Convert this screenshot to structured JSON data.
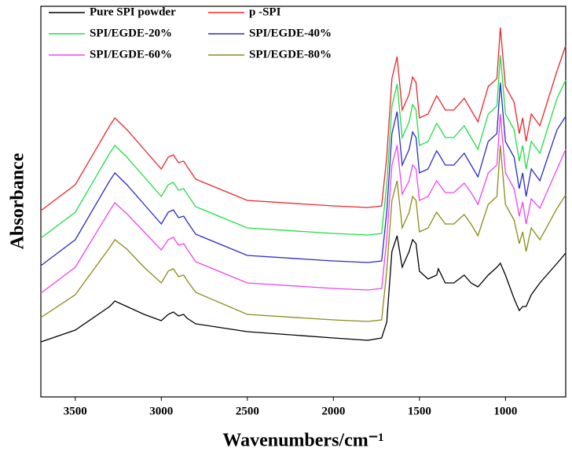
{
  "chart_data": {
    "type": "line",
    "xlabel": "Wavenumbers/cm⁻¹",
    "ylabel": "Absorbance",
    "x": [
      3700,
      3500,
      3300,
      3270,
      3200,
      3100,
      3000,
      2960,
      2930,
      2900,
      2870,
      2850,
      2800,
      2500,
      2000,
      1800,
      1720,
      1690,
      1660,
      1630,
      1600,
      1560,
      1540,
      1520,
      1500,
      1450,
      1400,
      1390,
      1350,
      1300,
      1240,
      1200,
      1160,
      1100,
      1050,
      1030,
      1000,
      950,
      920,
      900,
      880,
      850,
      800,
      700,
      650
    ],
    "xlim": [
      3700,
      650
    ],
    "xticks": [
      3500,
      3000,
      2500,
      2000,
      1500,
      1000
    ],
    "ylim": [
      0,
      497
    ],
    "series": [
      {
        "name": "Pure SPI powder",
        "color": "#000000",
        "values": [
          70,
          85,
          115,
          122,
          115,
          105,
          97,
          105,
          108,
          103,
          105,
          100,
          93,
          83,
          75,
          72,
          75,
          95,
          185,
          205,
          165,
          185,
          200,
          195,
          160,
          150,
          155,
          163,
          145,
          145,
          155,
          145,
          140,
          155,
          165,
          170,
          155,
          125,
          110,
          115,
          115,
          130,
          145,
          170,
          183
        ]
      },
      {
        "name": "p -SPI",
        "color": "#e8282b",
        "values": [
          237,
          270,
          345,
          355,
          340,
          315,
          290,
          305,
          308,
          298,
          300,
          293,
          277,
          250,
          243,
          241,
          243,
          305,
          405,
          433,
          365,
          385,
          407,
          400,
          355,
          360,
          383,
          380,
          365,
          365,
          380,
          365,
          350,
          395,
          405,
          470,
          395,
          375,
          335,
          355,
          325,
          360,
          345,
          415,
          447
        ]
      },
      {
        "name": "SPI/EGDE-20%",
        "color": "#22dd44",
        "values": [
          202,
          235,
          310,
          320,
          305,
          280,
          255,
          270,
          273,
          263,
          265,
          258,
          242,
          215,
          208,
          206,
          208,
          270,
          370,
          398,
          330,
          350,
          372,
          365,
          320,
          325,
          348,
          345,
          330,
          330,
          345,
          330,
          315,
          360,
          370,
          435,
          360,
          340,
          300,
          320,
          290,
          325,
          310,
          380,
          403
        ]
      },
      {
        "name": "SPI/EGDE-40%",
        "color": "#2b2bc8",
        "values": [
          167,
          200,
          275,
          285,
          270,
          245,
          220,
          235,
          238,
          228,
          230,
          223,
          207,
          180,
          173,
          171,
          173,
          235,
          335,
          363,
          295,
          315,
          337,
          330,
          285,
          290,
          313,
          310,
          295,
          295,
          310,
          295,
          280,
          325,
          335,
          400,
          325,
          305,
          265,
          285,
          255,
          290,
          275,
          340,
          357
        ]
      },
      {
        "name": "SPI/EGDE-60%",
        "color": "#ee44ee",
        "values": [
          132,
          165,
          237,
          247,
          233,
          210,
          187,
          200,
          203,
          193,
          195,
          188,
          172,
          145,
          138,
          136,
          138,
          200,
          295,
          320,
          258,
          275,
          295,
          290,
          250,
          255,
          275,
          272,
          260,
          260,
          272,
          260,
          245,
          285,
          295,
          360,
          285,
          265,
          230,
          248,
          220,
          252,
          240,
          290,
          315
        ]
      },
      {
        "name": "SPI/EGDE-80%",
        "color": "#8b8b1a",
        "values": [
          101,
          130,
          190,
          200,
          188,
          165,
          145,
          160,
          163,
          153,
          155,
          148,
          133,
          105,
          98,
          96,
          98,
          160,
          250,
          275,
          215,
          235,
          255,
          250,
          210,
          215,
          235,
          232,
          220,
          220,
          232,
          220,
          205,
          245,
          255,
          320,
          245,
          225,
          195,
          210,
          185,
          215,
          200,
          240,
          257
        ]
      }
    ]
  }
}
